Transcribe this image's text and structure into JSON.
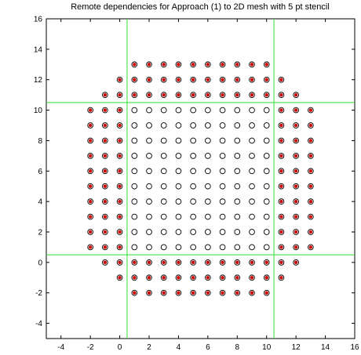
{
  "chart_data": {
    "type": "scatter",
    "title": "Remote dependencies for Approach (1) to 2D mesh with 5 pt stencil",
    "xlabel": "",
    "ylabel": "",
    "xlim": [
      -5,
      16
    ],
    "ylim": [
      -5,
      16
    ],
    "x_ticks": [
      -4,
      -2,
      0,
      2,
      4,
      6,
      8,
      10,
      12,
      14,
      16
    ],
    "y_ticks": [
      -4,
      -2,
      0,
      2,
      4,
      6,
      8,
      10,
      12,
      14,
      16
    ],
    "x_tick_labels": [
      "-4",
      "-2",
      "0",
      "2",
      "4",
      "6",
      "8",
      "10",
      "12",
      "14",
      "16"
    ],
    "y_tick_labels": [
      "-4",
      "-2",
      "0",
      "2",
      "4",
      "6",
      "8",
      "10",
      "12",
      "14",
      "16"
    ],
    "grid": false,
    "partition_lines": {
      "x": [
        0.5,
        10.5
      ],
      "y": [
        0.5,
        10.5
      ],
      "color": "#33dd33"
    },
    "series": [
      {
        "marker": "open-circle",
        "color": "#000000",
        "region": {
          "x_range": [
            1,
            10
          ],
          "y_range": [
            1,
            10
          ]
        },
        "points": []
      },
      {
        "marker": "circled-red-dot",
        "color": "#cc0000",
        "points": [
          [
            1,
            13
          ],
          [
            2,
            13
          ],
          [
            3,
            13
          ],
          [
            4,
            13
          ],
          [
            5,
            13
          ],
          [
            6,
            13
          ],
          [
            7,
            13
          ],
          [
            8,
            13
          ],
          [
            9,
            13
          ],
          [
            10,
            13
          ],
          [
            0,
            12
          ],
          [
            1,
            12
          ],
          [
            2,
            12
          ],
          [
            3,
            12
          ],
          [
            4,
            12
          ],
          [
            5,
            12
          ],
          [
            6,
            12
          ],
          [
            7,
            12
          ],
          [
            8,
            12
          ],
          [
            9,
            12
          ],
          [
            10,
            12
          ],
          [
            11,
            12
          ],
          [
            -1,
            11
          ],
          [
            0,
            11
          ],
          [
            1,
            11
          ],
          [
            2,
            11
          ],
          [
            3,
            11
          ],
          [
            4,
            11
          ],
          [
            5,
            11
          ],
          [
            6,
            11
          ],
          [
            7,
            11
          ],
          [
            8,
            11
          ],
          [
            9,
            11
          ],
          [
            10,
            11
          ],
          [
            11,
            11
          ],
          [
            12,
            11
          ],
          [
            1,
            0
          ],
          [
            2,
            0
          ],
          [
            3,
            0
          ],
          [
            4,
            0
          ],
          [
            5,
            0
          ],
          [
            6,
            0
          ],
          [
            7,
            0
          ],
          [
            8,
            0
          ],
          [
            9,
            0
          ],
          [
            10,
            0
          ],
          [
            -1,
            0
          ],
          [
            0,
            0
          ],
          [
            11,
            0
          ],
          [
            12,
            0
          ],
          [
            0,
            -1
          ],
          [
            1,
            -1
          ],
          [
            2,
            -1
          ],
          [
            3,
            -1
          ],
          [
            4,
            -1
          ],
          [
            5,
            -1
          ],
          [
            6,
            -1
          ],
          [
            7,
            -1
          ],
          [
            8,
            -1
          ],
          [
            9,
            -1
          ],
          [
            10,
            -1
          ],
          [
            11,
            -1
          ],
          [
            1,
            -2
          ],
          [
            2,
            -2
          ],
          [
            3,
            -2
          ],
          [
            4,
            -2
          ],
          [
            5,
            -2
          ],
          [
            6,
            -2
          ],
          [
            7,
            -2
          ],
          [
            8,
            -2
          ],
          [
            9,
            -2
          ],
          [
            10,
            -2
          ],
          [
            -2,
            10
          ],
          [
            -1,
            10
          ],
          [
            0,
            10
          ],
          [
            11,
            10
          ],
          [
            12,
            10
          ],
          [
            13,
            10
          ],
          [
            -2,
            9
          ],
          [
            -1,
            9
          ],
          [
            0,
            9
          ],
          [
            11,
            9
          ],
          [
            12,
            9
          ],
          [
            13,
            9
          ],
          [
            -2,
            8
          ],
          [
            -1,
            8
          ],
          [
            0,
            8
          ],
          [
            11,
            8
          ],
          [
            12,
            8
          ],
          [
            13,
            8
          ],
          [
            -2,
            7
          ],
          [
            -1,
            7
          ],
          [
            0,
            7
          ],
          [
            11,
            7
          ],
          [
            12,
            7
          ],
          [
            13,
            7
          ],
          [
            -2,
            6
          ],
          [
            -1,
            6
          ],
          [
            0,
            6
          ],
          [
            11,
            6
          ],
          [
            12,
            6
          ],
          [
            13,
            6
          ],
          [
            -2,
            5
          ],
          [
            -1,
            5
          ],
          [
            0,
            5
          ],
          [
            11,
            5
          ],
          [
            12,
            5
          ],
          [
            13,
            5
          ],
          [
            -2,
            4
          ],
          [
            -1,
            4
          ],
          [
            0,
            4
          ],
          [
            11,
            4
          ],
          [
            12,
            4
          ],
          [
            13,
            4
          ],
          [
            -2,
            3
          ],
          [
            -1,
            3
          ],
          [
            0,
            3
          ],
          [
            11,
            3
          ],
          [
            12,
            3
          ],
          [
            13,
            3
          ],
          [
            -2,
            2
          ],
          [
            -1,
            2
          ],
          [
            0,
            2
          ],
          [
            11,
            2
          ],
          [
            12,
            2
          ],
          [
            13,
            2
          ],
          [
            -2,
            1
          ],
          [
            -1,
            1
          ],
          [
            0,
            1
          ],
          [
            11,
            1
          ],
          [
            12,
            1
          ],
          [
            13,
            1
          ]
        ]
      }
    ]
  }
}
